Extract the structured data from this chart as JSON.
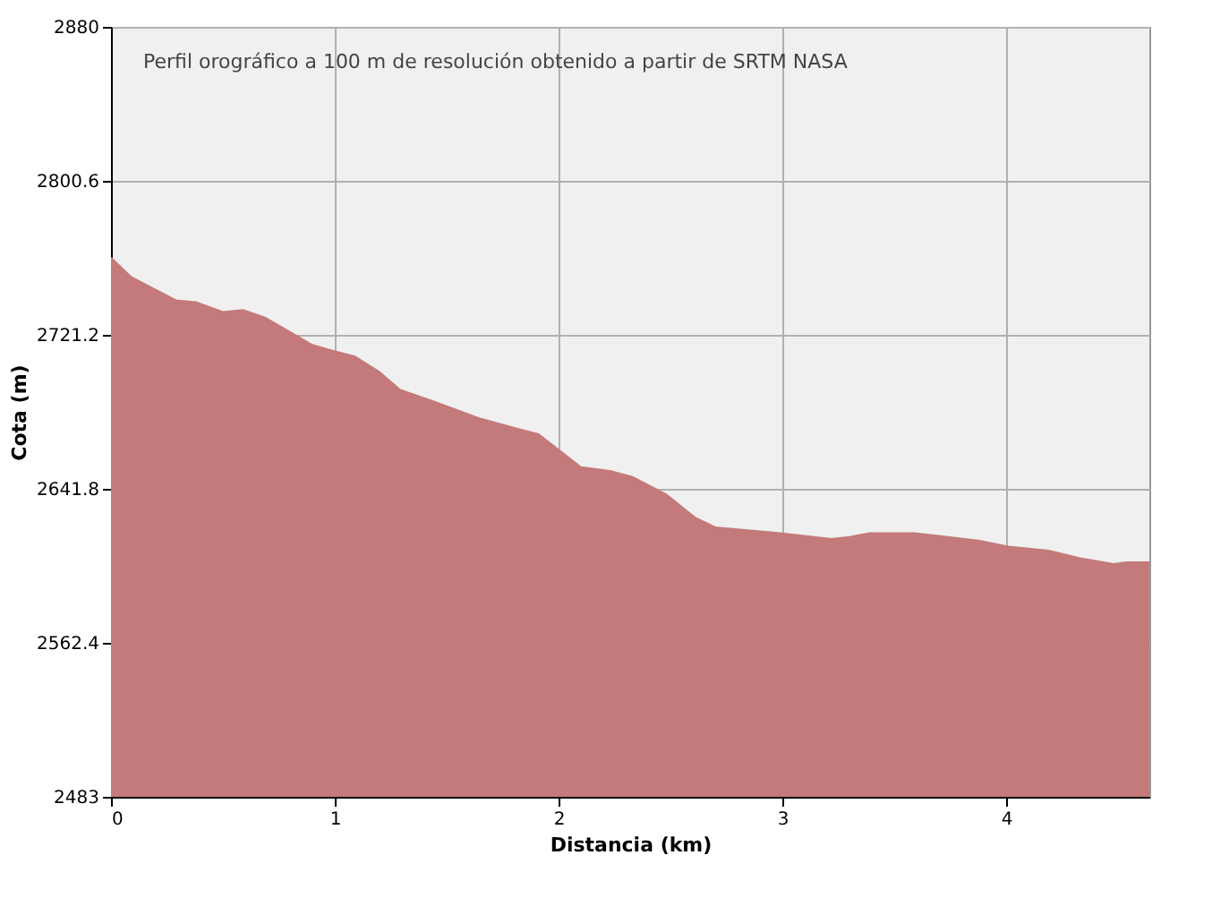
{
  "chart_data": {
    "type": "area",
    "xlabel": "Distancia (km)",
    "ylabel": "Cota (m)",
    "annotations": [
      "Perfil orográfico a 100 m de resolución obtenido a partir de SRTM NASA"
    ],
    "x": [
      0,
      0.09,
      0.29,
      0.38,
      0.5,
      0.59,
      0.69,
      0.9,
      0.99,
      1.09,
      1.2,
      1.29,
      1.44,
      1.65,
      1.81,
      1.91,
      2.1,
      2.23,
      2.33,
      2.48,
      2.61,
      2.7,
      2.99,
      3.22,
      3.3,
      3.39,
      3.59,
      3.74,
      3.88,
      4.01,
      4.19,
      4.33,
      4.48,
      4.54,
      4.64
    ],
    "series": [
      {
        "color": "#c47a7a",
        "values": [
          2761,
          2751,
          2739,
          2738,
          2733,
          2734,
          2730,
          2716,
          2713,
          2710,
          2702,
          2693,
          2687,
          2678,
          2673,
          2670,
          2653,
          2651,
          2648,
          2639,
          2627,
          2622,
          2619,
          2616,
          2617,
          2619,
          2619,
          2617,
          2615,
          2612,
          2610,
          2606,
          2603,
          2604,
          2604
        ]
      }
    ],
    "xlim": [
      0,
      4.64
    ],
    "ylim": [
      2483,
      2880
    ],
    "xticks": [
      0,
      1,
      2,
      3,
      4
    ],
    "yticks": [
      2483,
      2562.4,
      2641.8,
      2721.2,
      2800.6,
      2880
    ],
    "grid": true
  }
}
